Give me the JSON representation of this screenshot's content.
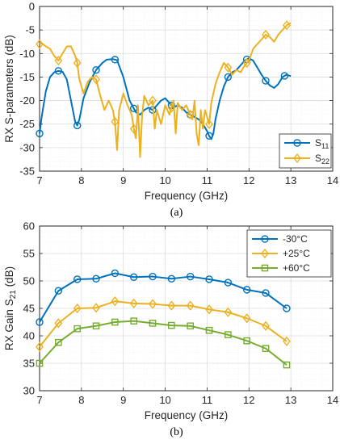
{
  "colors": {
    "blue": "#0072BD",
    "gold": "#EDB120",
    "green": "#77AC30",
    "grid": "#e3e3e3",
    "axis": "#262626"
  },
  "chart_data": [
    {
      "type": "line",
      "caption": "(a)",
      "xlabel": "Frequency (GHz)",
      "ylabel": "RX S-parameters (dB)",
      "xlim": [
        7,
        14
      ],
      "ylim": [
        -35,
        0
      ],
      "xticks": [
        7,
        8,
        9,
        10,
        11,
        12,
        13,
        14
      ],
      "yticks": [
        0,
        -5,
        -10,
        -15,
        -20,
        -25,
        -30,
        -35
      ],
      "grid": true,
      "minor_grid": true,
      "legend": "bottom-right",
      "series": [
        {
          "name": "S11",
          "name_main": "S",
          "name_sub": "11",
          "color": "blue",
          "marker": "circle",
          "x": [
            7.0,
            7.05,
            7.15,
            7.25,
            7.35,
            7.45,
            7.55,
            7.65,
            7.75,
            7.85,
            7.9,
            7.95,
            8.05,
            8.2,
            8.35,
            8.5,
            8.6,
            8.75,
            8.85,
            9.0,
            9.15,
            9.3,
            9.4,
            9.5,
            9.6,
            9.7,
            9.8,
            9.9,
            10.0,
            10.1,
            10.2,
            10.3,
            10.4,
            10.5,
            10.6,
            10.7,
            10.8,
            10.9,
            11.0,
            11.05,
            11.1,
            11.15,
            11.2,
            11.3,
            11.4,
            11.5,
            11.6,
            11.7,
            11.8,
            11.9,
            12.0,
            12.1,
            12.2,
            12.3,
            12.4,
            12.5,
            12.6,
            12.7,
            12.8,
            12.9,
            13.0
          ],
          "y": [
            -27.0,
            -23.5,
            -18.0,
            -15.0,
            -14.0,
            -13.7,
            -13.9,
            -15.5,
            -20.0,
            -24.5,
            -25.3,
            -24.0,
            -19.5,
            -16.0,
            -13.5,
            -12.0,
            -11.3,
            -11.2,
            -11.4,
            -15.0,
            -20.0,
            -22.5,
            -23.0,
            -22.0,
            -21.5,
            -22.0,
            -21.0,
            -20.0,
            -19.5,
            -20.5,
            -21.5,
            -21.0,
            -21.5,
            -22.5,
            -23.0,
            -23.5,
            -24.0,
            -25.0,
            -26.5,
            -27.5,
            -28.2,
            -27.0,
            -24.0,
            -20.0,
            -17.0,
            -15.0,
            -14.0,
            -13.5,
            -12.5,
            -11.5,
            -11.0,
            -11.5,
            -13.0,
            -14.5,
            -15.8,
            -16.8,
            -17.3,
            -16.5,
            -15.0,
            -14.5,
            -14.8
          ],
          "markers_x": [
            7.0,
            7.45,
            7.9,
            8.35,
            8.8,
            9.25,
            9.7,
            10.15,
            10.6,
            11.05,
            11.5,
            11.95,
            12.4,
            12.85
          ]
        },
        {
          "name": "S22",
          "name_main": "S",
          "name_sub": "22",
          "color": "gold",
          "marker": "diamond",
          "x": [
            7.0,
            7.05,
            7.15,
            7.25,
            7.35,
            7.45,
            7.55,
            7.65,
            7.75,
            7.85,
            7.9,
            7.95,
            8.05,
            8.15,
            8.25,
            8.35,
            8.45,
            8.55,
            8.65,
            8.75,
            8.8,
            8.85,
            8.9,
            9.0,
            9.1,
            9.2,
            9.25,
            9.3,
            9.35,
            9.4,
            9.45,
            9.5,
            9.6,
            9.7,
            9.75,
            9.8,
            9.9,
            10.0,
            10.1,
            10.2,
            10.25,
            10.3,
            10.4,
            10.5,
            10.6,
            10.65,
            10.7,
            10.75,
            10.8,
            10.85,
            10.9,
            10.95,
            11.0,
            11.05,
            11.1,
            11.2,
            11.3,
            11.4,
            11.5,
            11.6,
            11.7,
            11.8,
            11.9,
            12.0,
            12.1,
            12.2,
            12.3,
            12.4,
            12.5,
            12.6,
            12.7,
            12.8,
            12.9,
            13.0
          ],
          "y": [
            -8.0,
            -7.8,
            -8.5,
            -9.0,
            -10.5,
            -11.5,
            -10.0,
            -8.5,
            -8.5,
            -10.5,
            -12.0,
            -15.5,
            -18.5,
            -16.0,
            -15.0,
            -15.5,
            -19.0,
            -22.0,
            -20.0,
            -22.0,
            -24.5,
            -30.5,
            -22.0,
            -18.5,
            -21.0,
            -23.0,
            -26.0,
            -28.0,
            -21.0,
            -32.0,
            -23.0,
            -19.0,
            -21.0,
            -20.0,
            -26.0,
            -22.0,
            -25.0,
            -21.0,
            -23.0,
            -20.0,
            -27.0,
            -20.5,
            -22.0,
            -21.0,
            -23.0,
            -24.0,
            -20.0,
            -27.0,
            -29.5,
            -22.0,
            -26.0,
            -22.0,
            -23.5,
            -25.0,
            -20.5,
            -16.5,
            -14.0,
            -12.0,
            -13.0,
            -14.5,
            -13.5,
            -14.0,
            -12.5,
            -11.5,
            -9.0,
            -8.0,
            -7.0,
            -6.0,
            -6.5,
            -7.5,
            -6.0,
            -5.0,
            -4.0,
            -3.5
          ],
          "markers_x": [
            7.0,
            7.45,
            7.9,
            8.35,
            8.8,
            9.25,
            9.7,
            10.15,
            10.6,
            11.05,
            11.5,
            11.95,
            12.4,
            12.9
          ]
        }
      ]
    },
    {
      "type": "line",
      "caption": "(b)",
      "xlabel": "Frequency (GHz)",
      "ylabel": "RX Gain S21 (dB)",
      "ylabel_main": "RX Gain S",
      "ylabel_sub": "21",
      "ylabel_tail": " (dB)",
      "xlim": [
        7,
        14
      ],
      "ylim": [
        30,
        60
      ],
      "xticks": [
        7,
        8,
        9,
        10,
        11,
        12,
        13,
        14
      ],
      "yticks": [
        60,
        55,
        50,
        45,
        40,
        35,
        30
      ],
      "grid": true,
      "minor_grid": true,
      "legend": "top-right",
      "series": [
        {
          "name": "-30°C",
          "color": "blue",
          "marker": "circle",
          "x": [
            7.0,
            7.45,
            7.9,
            8.35,
            8.8,
            9.25,
            9.7,
            10.15,
            10.6,
            11.05,
            11.5,
            11.95,
            12.4,
            12.9
          ],
          "y": [
            42.5,
            48.2,
            50.3,
            50.4,
            51.4,
            50.7,
            50.8,
            50.4,
            50.8,
            50.3,
            49.7,
            48.4,
            47.8,
            45.0
          ]
        },
        {
          "name": "+25°C",
          "color": "gold",
          "marker": "diamond",
          "x": [
            7.0,
            7.45,
            7.9,
            8.35,
            8.8,
            9.25,
            9.7,
            10.15,
            10.6,
            11.05,
            11.5,
            11.95,
            12.4,
            12.9
          ],
          "y": [
            38.0,
            42.3,
            45.0,
            45.1,
            46.3,
            45.9,
            45.8,
            45.5,
            45.5,
            44.8,
            44.3,
            43.2,
            41.8,
            39.0
          ]
        },
        {
          "name": "+60°C",
          "color": "green",
          "marker": "square",
          "x": [
            7.0,
            7.45,
            7.9,
            8.35,
            8.8,
            9.25,
            9.7,
            10.15,
            10.6,
            11.05,
            11.5,
            11.95,
            12.4,
            12.9
          ],
          "y": [
            35.0,
            38.8,
            41.3,
            41.8,
            42.5,
            42.7,
            42.3,
            41.9,
            41.8,
            41.0,
            40.2,
            39.1,
            37.7,
            34.7
          ]
        }
      ]
    }
  ]
}
